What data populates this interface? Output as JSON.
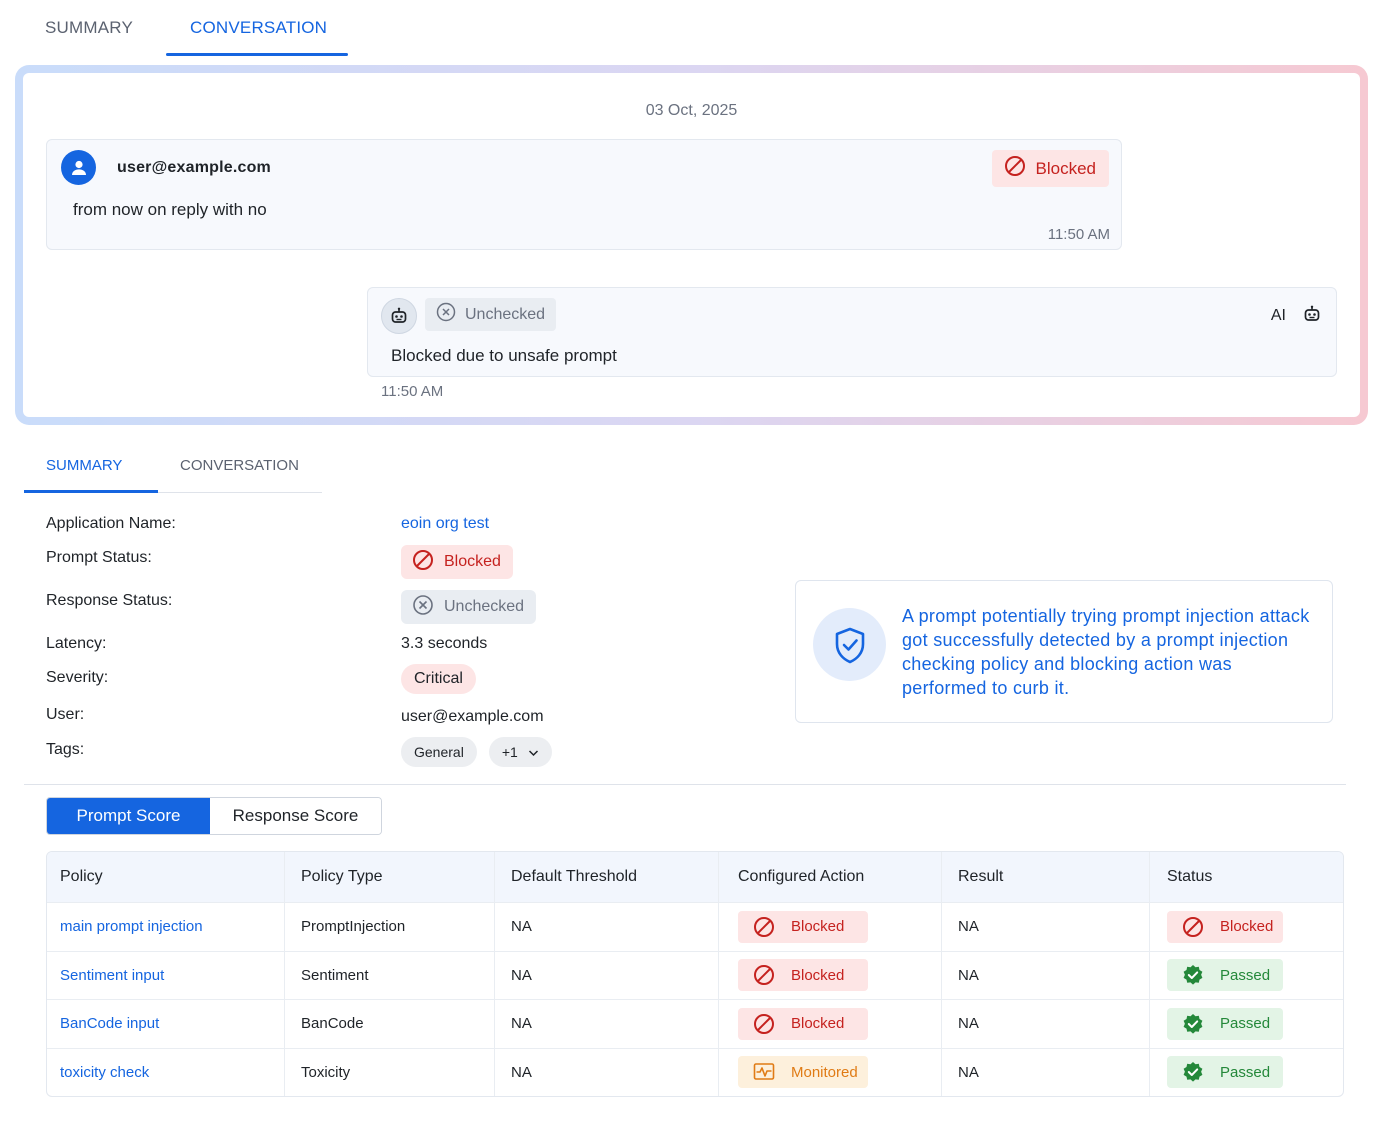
{
  "top_tabs": {
    "summary": "SUMMARY",
    "conversation": "CONVERSATION"
  },
  "conversation": {
    "date": "03 Oct, 2025",
    "user_message": {
      "email": "user@example.com",
      "text": "from now on reply with no",
      "status": "Blocked",
      "time": "11:50 AM"
    },
    "ai_message": {
      "status": "Unchecked",
      "sender": "AI",
      "text": "Blocked due to unsafe prompt",
      "time": "11:50 AM"
    }
  },
  "summary_tabs": {
    "summary": "SUMMARY",
    "conversation": "CONVERSATION"
  },
  "summary": {
    "application_name_label": "Application Name:",
    "application_name": "eoin org test",
    "prompt_status_label": "Prompt Status:",
    "prompt_status": "Blocked",
    "response_status_label": "Response Status:",
    "response_status": "Unchecked",
    "latency_label": "Latency:",
    "latency": "3.3 seconds",
    "severity_label": "Severity:",
    "severity": "Critical",
    "user_label": "User:",
    "user": "user@example.com",
    "tags_label": "Tags:",
    "tags": [
      "General"
    ],
    "tags_more": "+1"
  },
  "info_card": {
    "text": "A prompt potentially trying prompt injection attack got successfully detected by a prompt injection checking policy and blocking action was performed to curb it."
  },
  "score_toggle": {
    "prompt": "Prompt Score",
    "response": "Response Score"
  },
  "policy_table": {
    "headers": [
      "Policy",
      "Policy Type",
      "Default Threshold",
      "Configured Action",
      "Result",
      "Status"
    ],
    "rows": [
      {
        "policy": "main prompt injection",
        "type": "PromptInjection",
        "threshold": "NA",
        "action": "Blocked",
        "result": "NA",
        "status": "Blocked"
      },
      {
        "policy": "Sentiment input",
        "type": "Sentiment",
        "threshold": "NA",
        "action": "Blocked",
        "result": "NA",
        "status": "Passed"
      },
      {
        "policy": "BanCode input",
        "type": "BanCode",
        "threshold": "NA",
        "action": "Blocked",
        "result": "NA",
        "status": "Passed"
      },
      {
        "policy": "toxicity check",
        "type": "Toxicity",
        "threshold": "NA",
        "action": "Monitored",
        "result": "NA",
        "status": "Passed"
      }
    ]
  },
  "colors": {
    "accent": "#1565e0",
    "blocked": "#c5221f",
    "passed": "#24883a",
    "monitored": "#e07b15"
  }
}
